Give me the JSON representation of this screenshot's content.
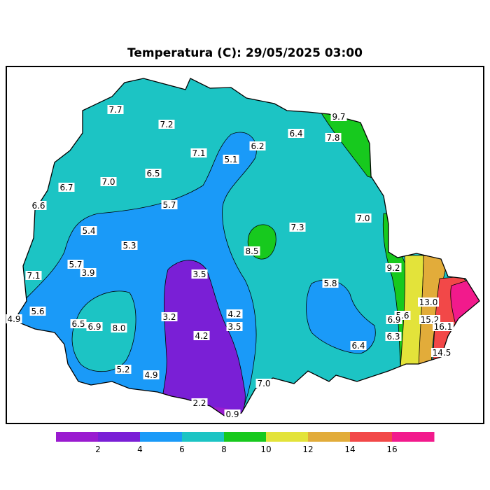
{
  "title": "Temperatura (C): 29/05/2025 03:00",
  "colorbar": {
    "bins": [
      {
        "from": 0,
        "to": 2,
        "color": "#9a1bd0"
      },
      {
        "from": 2,
        "to": 4,
        "color": "#7a1fd6"
      },
      {
        "from": 4,
        "to": 6,
        "color": "#1a9af8"
      },
      {
        "from": 6,
        "to": 8,
        "color": "#1cc4c4"
      },
      {
        "from": 8,
        "to": 10,
        "color": "#17c91e"
      },
      {
        "from": 10,
        "to": 12,
        "color": "#e3e33a"
      },
      {
        "from": 12,
        "to": 14,
        "color": "#e2ac3a"
      },
      {
        "from": 14,
        "to": 16,
        "color": "#f24848"
      },
      {
        "from": 16,
        "to": 18,
        "color": "#f21a8c"
      }
    ],
    "tick_labels": [
      "2",
      "4",
      "6",
      "8",
      "10",
      "12",
      "14",
      "16"
    ]
  },
  "station_values": [
    "7.7",
    "7.2",
    "9.7",
    "6.4",
    "7.8",
    "6.2",
    "7.1",
    "5.1",
    "6.5",
    "7.0",
    "6.7",
    "6.6",
    "5.7",
    "7.0",
    "7.3",
    "5.4",
    "8.5",
    "5.3",
    "9.2",
    "5.7",
    "3.9",
    "7.1",
    "3.5",
    "5.8",
    "13.0",
    "5.6",
    "4.2",
    "5.6",
    "3.2",
    "6.9",
    "15.2",
    "4.9",
    "6.5",
    "6.9",
    "8.0",
    "3.5",
    "16.1",
    "4.2",
    "6.3",
    "6.4",
    "14.5",
    "5.2",
    "4.9",
    "7.0",
    "2.2",
    "0.9"
  ]
}
